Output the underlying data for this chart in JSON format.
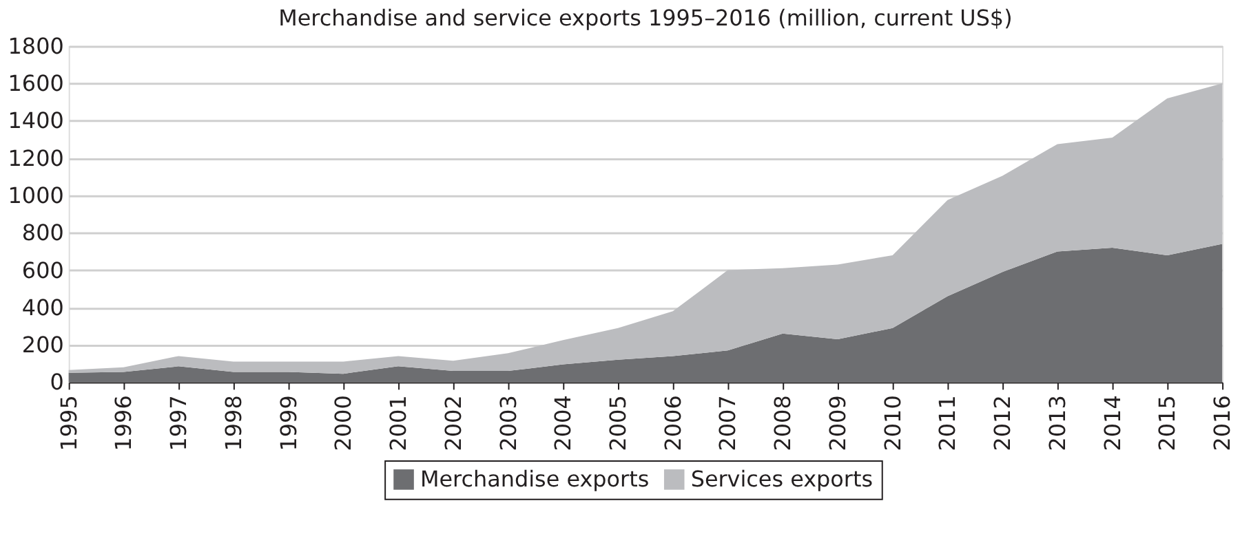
{
  "chart_data": {
    "type": "area",
    "title": "Merchandise and service exports 1995–2016 (million, current US$)",
    "stacked": true,
    "categories": [
      "1995",
      "1996",
      "1997",
      "1998",
      "1999",
      "2000",
      "2001",
      "2002",
      "2003",
      "2004",
      "2005",
      "2006",
      "2007",
      "2008",
      "2009",
      "2010",
      "2011",
      "2012",
      "2013",
      "2014",
      "2015",
      "2016"
    ],
    "series": [
      {
        "name": "Merchandise exports",
        "color": "#6d6e71",
        "values": [
          50,
          55,
          85,
          55,
          55,
          45,
          85,
          60,
          60,
          95,
          120,
          140,
          170,
          260,
          230,
          290,
          460,
          590,
          700,
          720,
          680,
          740
        ]
      },
      {
        "name": "Services exports",
        "color": "#bbbcbf",
        "values": [
          15,
          25,
          55,
          55,
          55,
          65,
          55,
          55,
          95,
          130,
          170,
          240,
          430,
          350,
          400,
          390,
          515,
          515,
          575,
          590,
          840,
          860
        ]
      }
    ],
    "ylim": [
      0,
      1800
    ],
    "yticks": [
      0,
      200,
      400,
      600,
      800,
      1000,
      1200,
      1400,
      1600,
      1800
    ],
    "grid": "y",
    "legend": "bottom"
  }
}
